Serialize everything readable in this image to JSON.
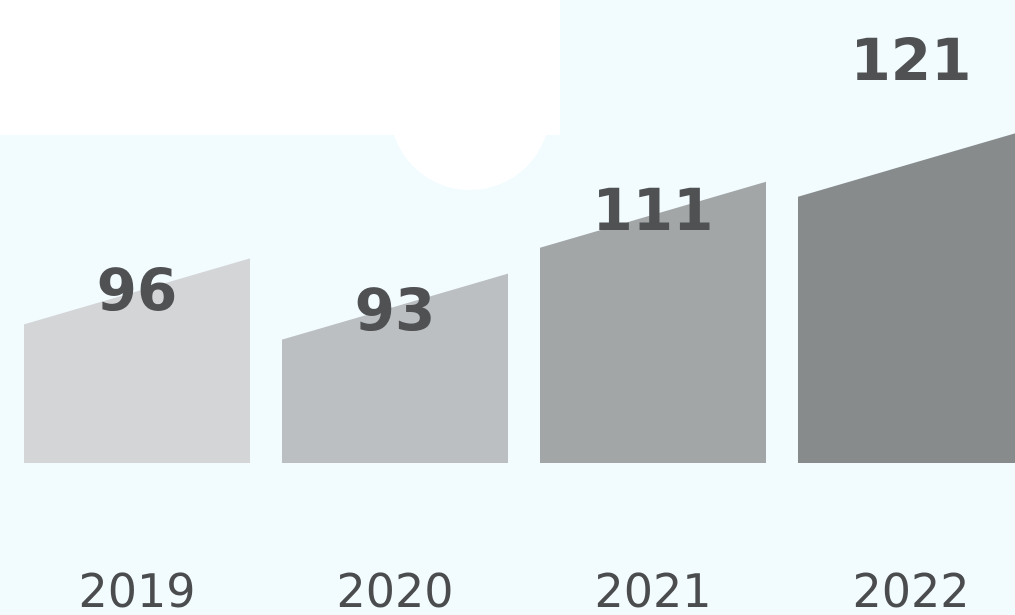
{
  "chart_data": {
    "type": "bar",
    "title": "",
    "xlabel": "",
    "ylabel": "",
    "categories": [
      "2019",
      "2020",
      "2021",
      "2022"
    ],
    "values": [
      96,
      93,
      111,
      121
    ],
    "ylim": [
      0,
      130
    ],
    "grid": false,
    "legend": "none",
    "colors": [
      "#d3d5d7",
      "#bcbfc1",
      "#a2a6a7",
      "#878b8c"
    ],
    "label_color": "#4f5153",
    "background": "#f2fbfe",
    "cloud_color": "#ffffff"
  }
}
